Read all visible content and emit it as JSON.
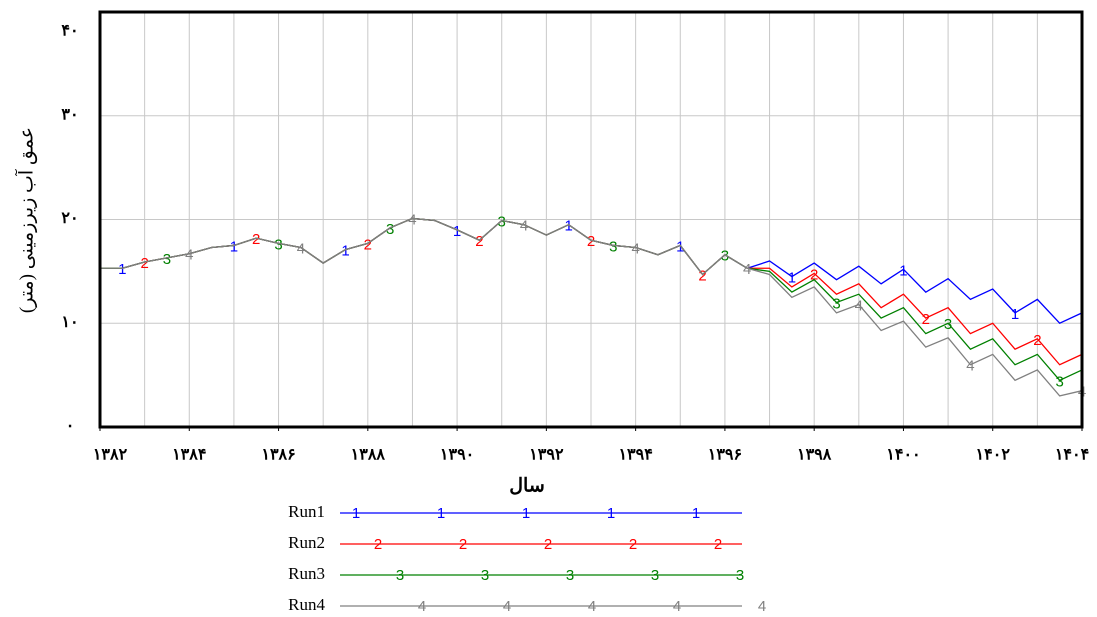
{
  "chart_data": {
    "type": "line",
    "y_label": "عمق آب زیرزمینی (متر)",
    "x_label": "سال",
    "xlim": [
      1382,
      1404
    ],
    "ylim": [
      0,
      40
    ],
    "xticks": [
      {
        "value": 1382,
        "label": "۱۳۸۲"
      },
      {
        "value": 1384,
        "label": "۱۳۸۴"
      },
      {
        "value": 1386,
        "label": "۱۳۸۶"
      },
      {
        "value": 1388,
        "label": "۱۳۸۸"
      },
      {
        "value": 1390,
        "label": "۱۳۹۰"
      },
      {
        "value": 1392,
        "label": "۱۳۹۲"
      },
      {
        "value": 1394,
        "label": "۱۳۹۴"
      },
      {
        "value": 1396,
        "label": "۱۳۹۶"
      },
      {
        "value": 1398,
        "label": "۱۳۹۸"
      },
      {
        "value": 1400,
        "label": "۱۴۰۰"
      },
      {
        "value": 1402,
        "label": "۱۴۰۲"
      },
      {
        "value": 1404,
        "label": "۱۴۰۴"
      }
    ],
    "yticks": [
      {
        "value": 0,
        "label": "۰"
      },
      {
        "value": 10,
        "label": "۱۰"
      },
      {
        "value": 20,
        "label": "۲۰"
      },
      {
        "value": 30,
        "label": "۳۰"
      },
      {
        "value": 40,
        "label": "۴۰"
      }
    ],
    "grid": true,
    "x": [
      1382,
      1382.5,
      1383,
      1383.5,
      1384,
      1384.5,
      1385,
      1385.5,
      1386,
      1386.5,
      1387,
      1387.5,
      1388,
      1388.5,
      1389,
      1389.5,
      1390,
      1390.5,
      1391,
      1391.5,
      1392,
      1392.5,
      1393,
      1393.5,
      1394,
      1394.5,
      1395,
      1395.5,
      1396,
      1396.5,
      1397,
      1397.5,
      1398,
      1398.5,
      1399,
      1399.5,
      1400,
      1400.5,
      1401,
      1401.5,
      1402,
      1402.5,
      1403,
      1403.5,
      1404
    ],
    "series": [
      {
        "name": "Run1",
        "marker": "1",
        "color": "#0000ff",
        "values": [
          15.3,
          15.3,
          15.9,
          16.3,
          16.7,
          17.3,
          17.5,
          18.2,
          17.7,
          17.3,
          15.8,
          17.1,
          17.7,
          19.2,
          20.1,
          19.9,
          19.0,
          18.0,
          19.9,
          19.5,
          18.5,
          19.5,
          18.0,
          17.5,
          17.3,
          16.6,
          17.5,
          14.7,
          16.6,
          15.3,
          16.0,
          14.5,
          15.8,
          14.2,
          15.5,
          13.8,
          15.2,
          13.0,
          14.3,
          12.3,
          13.3,
          11.0,
          12.3,
          10.0,
          11.0
        ]
      },
      {
        "name": "Run2",
        "marker": "2",
        "color": "#ff0000",
        "values": [
          15.3,
          15.3,
          15.9,
          16.3,
          16.7,
          17.3,
          17.5,
          18.2,
          17.7,
          17.3,
          15.8,
          17.1,
          17.7,
          19.2,
          20.1,
          19.9,
          19.0,
          18.0,
          19.9,
          19.5,
          18.5,
          19.5,
          18.0,
          17.5,
          17.3,
          16.6,
          17.5,
          14.7,
          16.6,
          15.3,
          15.3,
          13.5,
          14.8,
          12.8,
          13.8,
          11.5,
          12.8,
          10.5,
          11.5,
          9.0,
          10.0,
          7.5,
          8.5,
          6.0,
          7.0
        ]
      },
      {
        "name": "Run3",
        "marker": "3",
        "color": "#008000",
        "values": [
          15.3,
          15.3,
          15.9,
          16.3,
          16.7,
          17.3,
          17.5,
          18.2,
          17.7,
          17.3,
          15.8,
          17.1,
          17.7,
          19.2,
          20.1,
          19.9,
          19.0,
          18.0,
          19.9,
          19.5,
          18.5,
          19.5,
          18.0,
          17.5,
          17.3,
          16.6,
          17.5,
          14.7,
          16.6,
          15.3,
          15.0,
          13.0,
          14.2,
          12.0,
          12.8,
          10.5,
          11.5,
          9.0,
          10.0,
          7.5,
          8.5,
          6.0,
          7.0,
          4.5,
          5.5
        ]
      },
      {
        "name": "Run4",
        "marker": "4",
        "color": "#808080",
        "values": [
          15.3,
          15.3,
          15.9,
          16.3,
          16.7,
          17.3,
          17.5,
          18.2,
          17.7,
          17.3,
          15.8,
          17.1,
          17.7,
          19.2,
          20.1,
          19.9,
          19.0,
          18.0,
          19.9,
          19.5,
          18.5,
          19.5,
          18.0,
          17.5,
          17.3,
          16.6,
          17.5,
          14.7,
          16.6,
          15.3,
          14.7,
          12.5,
          13.5,
          11.0,
          11.8,
          9.3,
          10.2,
          7.7,
          8.6,
          6.0,
          7.0,
          4.5,
          5.5,
          3.0,
          3.5
        ]
      }
    ]
  }
}
